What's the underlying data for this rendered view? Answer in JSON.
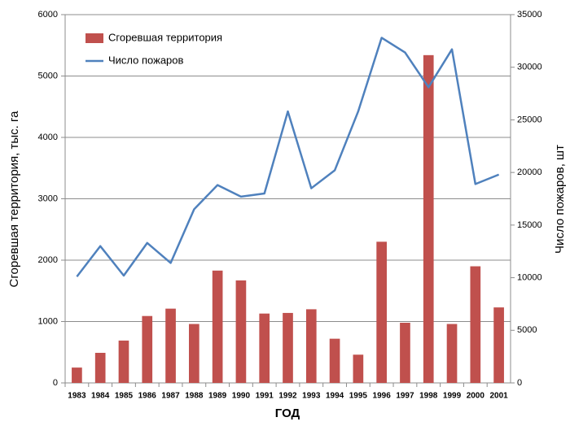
{
  "chart_data": {
    "type": "combo",
    "x_label": "ГОД",
    "y_label": "Сгоревшая территория, тыс. га",
    "y2_label": "Число пожаров, шт",
    "categories": [
      "1983",
      "1984",
      "1985",
      "1986",
      "1987",
      "1988",
      "1989",
      "1990",
      "1991",
      "1992",
      "1993",
      "1994",
      "1995",
      "1996",
      "1997",
      "1998",
      "1999",
      "2000",
      "2001"
    ],
    "series": [
      {
        "name": "Сгоревшая территория",
        "type": "bar",
        "color": "#c0504d",
        "values": [
          250,
          490,
          690,
          1090,
          1210,
          960,
          1830,
          1670,
          1130,
          1140,
          1200,
          720,
          460,
          2300,
          980,
          5340,
          960,
          1900,
          1230
        ]
      },
      {
        "name": "Число пожаров",
        "type": "line",
        "axis": "y2",
        "color": "#4f81bd",
        "values": [
          10100,
          13000,
          10200,
          13300,
          11400,
          16500,
          18800,
          17700,
          18000,
          25800,
          18500,
          20200,
          25800,
          32800,
          31400,
          28100,
          31700,
          18900,
          19800
        ]
      }
    ],
    "ylim": [
      0,
      6000
    ],
    "yticks": [
      0,
      1000,
      2000,
      3000,
      4000,
      5000,
      6000
    ],
    "y2lim": [
      0,
      35000
    ],
    "y2ticks": [
      0,
      5000,
      10000,
      15000,
      20000,
      25000,
      30000,
      35000
    ],
    "grid": true,
    "legend": "top-left"
  }
}
